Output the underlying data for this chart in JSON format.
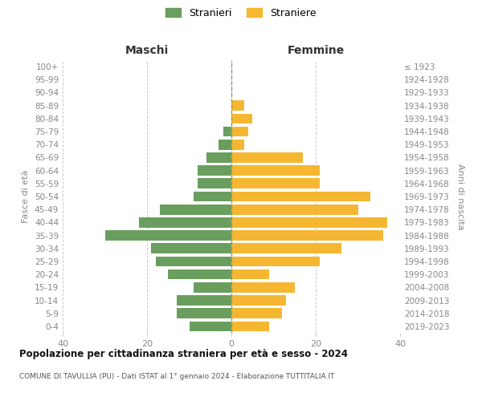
{
  "age_groups": [
    "0-4",
    "5-9",
    "10-14",
    "15-19",
    "20-24",
    "25-29",
    "30-34",
    "35-39",
    "40-44",
    "45-49",
    "50-54",
    "55-59",
    "60-64",
    "65-69",
    "70-74",
    "75-79",
    "80-84",
    "85-89",
    "90-94",
    "95-99",
    "100+"
  ],
  "birth_years": [
    "2019-2023",
    "2014-2018",
    "2009-2013",
    "2004-2008",
    "1999-2003",
    "1994-1998",
    "1989-1993",
    "1984-1988",
    "1979-1983",
    "1974-1978",
    "1969-1973",
    "1964-1968",
    "1959-1963",
    "1954-1958",
    "1949-1953",
    "1944-1948",
    "1939-1943",
    "1934-1938",
    "1929-1933",
    "1924-1928",
    "≤ 1923"
  ],
  "maschi": [
    10,
    13,
    13,
    9,
    15,
    18,
    19,
    30,
    22,
    17,
    9,
    8,
    8,
    6,
    3,
    2,
    0,
    0,
    0,
    0,
    0
  ],
  "femmine": [
    9,
    12,
    13,
    15,
    9,
    21,
    26,
    36,
    37,
    30,
    33,
    21,
    21,
    17,
    3,
    4,
    5,
    3,
    0,
    0,
    0
  ],
  "color_maschi": "#6a9e5e",
  "color_femmine": "#f5b731",
  "title": "Popolazione per cittadinanza straniera per età e sesso - 2024",
  "subtitle": "COMUNE DI TAVULLIA (PU) - Dati ISTAT al 1° gennaio 2024 - Elaborazione TUTTITALIA.IT",
  "label_maschi": "Stranieri",
  "label_femmine": "Straniere",
  "header_left": "Maschi",
  "header_right": "Femmine",
  "ylabel_left": "Fasce di età",
  "ylabel_right": "Anni di nascita",
  "xlim": 40,
  "background_color": "#ffffff",
  "grid_color": "#cccccc",
  "center_line_color": "#aaaaaa",
  "tick_color": "#888888",
  "header_color": "#333333",
  "title_color": "#111111",
  "subtitle_color": "#555555"
}
